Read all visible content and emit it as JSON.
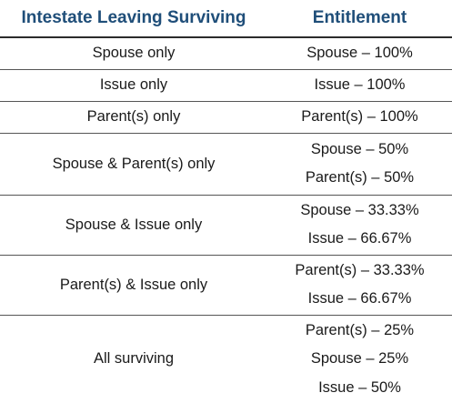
{
  "table": {
    "headers": {
      "intestate": "Intestate Leaving Surviving",
      "entitlement": "Entitlement"
    },
    "rows": [
      {
        "surviving": "Spouse only",
        "entitlement": [
          "Spouse – 100%"
        ]
      },
      {
        "surviving": "Issue only",
        "entitlement": [
          "Issue – 100%"
        ]
      },
      {
        "surviving": "Parent(s) only",
        "entitlement": [
          "Parent(s) – 100%"
        ]
      },
      {
        "surviving": "Spouse & Parent(s) only",
        "entitlement": [
          "Spouse – 50%",
          "Parent(s) – 50%"
        ]
      },
      {
        "surviving": "Spouse & Issue only",
        "entitlement": [
          "Spouse – 33.33%",
          "Issue – 66.67%"
        ]
      },
      {
        "surviving": "Parent(s) & Issue only",
        "entitlement": [
          "Parent(s) – 33.33%",
          "Issue – 66.67%"
        ]
      },
      {
        "surviving": "All surviving",
        "entitlement": [
          "Parent(s) – 25%",
          "Spouse – 25%",
          "Issue – 50%"
        ]
      }
    ]
  },
  "colors": {
    "header_text": "#1f4e79",
    "body_text": "#1a1a1a",
    "rule": "#555555"
  }
}
